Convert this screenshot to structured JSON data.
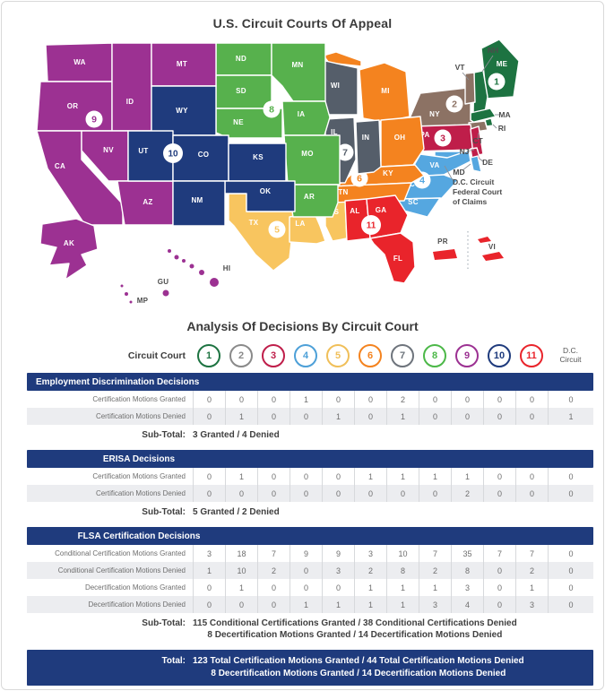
{
  "map": {
    "title": "U.S. Circuit Courts Of Appeal",
    "circuits": [
      {
        "number": "1",
        "color": "#1d7341",
        "states": [
          "ME",
          "NH",
          "MA",
          "RI"
        ]
      },
      {
        "number": "2",
        "color": "#8c7264",
        "states": [
          "NY",
          "VT",
          "CT"
        ]
      },
      {
        "number": "3",
        "color": "#bf1e4a",
        "states": [
          "PA",
          "NJ",
          "DE"
        ]
      },
      {
        "number": "4",
        "color": "#55a7e0",
        "states": [
          "MD",
          "DMV",
          "WV",
          "VA",
          "NC",
          "SC"
        ]
      },
      {
        "number": "5",
        "color": "#f8c55f",
        "states": [
          "TX",
          "LA",
          "MS"
        ]
      },
      {
        "number": "6",
        "color": "#f4831f",
        "states": [
          "MI",
          "OH",
          "KY",
          "TN"
        ]
      },
      {
        "number": "7",
        "color": "#555e6a",
        "states": [
          "WI",
          "IL",
          "IN"
        ]
      },
      {
        "number": "8",
        "color": "#57b14d",
        "states": [
          "ND",
          "SD",
          "NE",
          "MN",
          "IA",
          "MO",
          "AR"
        ]
      },
      {
        "number": "9",
        "color": "#9c3192",
        "states": [
          "WA",
          "OR",
          "ID",
          "MT",
          "CA",
          "NV",
          "AZ",
          "AK",
          "HI",
          "GU",
          "MP"
        ]
      },
      {
        "number": "10",
        "color": "#1f3b7d",
        "states": [
          "WY",
          "UT",
          "CO",
          "KS",
          "OK",
          "NM"
        ]
      },
      {
        "number": "11",
        "color": "#e9242b",
        "states": [
          "AL",
          "GA",
          "FL"
        ]
      }
    ],
    "territories": [
      {
        "label": "PR",
        "color": "#e9242b"
      },
      {
        "label": "VI",
        "color": "#e9242b"
      }
    ],
    "callouts": [
      "NH",
      "VT",
      "MA",
      "RI",
      "CT",
      "NJ",
      "DE",
      "MD"
    ],
    "dc_callout": [
      "D.C. Circuit",
      "Federal Court",
      "of Claims"
    ]
  },
  "table": {
    "title": "Analysis Of Decisions By Circuit Court",
    "header_label": "Circuit Court",
    "columns": [
      {
        "label": "1",
        "color": "#1d7341"
      },
      {
        "label": "2",
        "color": "#8a8a8a"
      },
      {
        "label": "3",
        "color": "#bf1e4a"
      },
      {
        "label": "4",
        "color": "#4da0d8"
      },
      {
        "label": "5",
        "color": "#f0bf59"
      },
      {
        "label": "6",
        "color": "#f4831f"
      },
      {
        "label": "7",
        "color": "#6e747c"
      },
      {
        "label": "8",
        "color": "#4cb848"
      },
      {
        "label": "9",
        "color": "#9c3192"
      },
      {
        "label": "10",
        "color": "#1f3b7d"
      },
      {
        "label": "11",
        "color": "#e9242b"
      }
    ],
    "dc_column": {
      "line1": "D.C.",
      "line2": "Circuit"
    },
    "sections": [
      {
        "title": "Employment Discrimination Decisions",
        "title_align": "left",
        "rows": [
          {
            "label": "Certification Motions Granted",
            "values": [
              "0",
              "0",
              "0",
              "1",
              "0",
              "0",
              "2",
              "0",
              "0",
              "0",
              "0",
              "0"
            ]
          },
          {
            "label": "Certification Motions Denied",
            "values": [
              "0",
              "1",
              "0",
              "0",
              "1",
              "0",
              "1",
              "0",
              "0",
              "0",
              "0",
              "1"
            ]
          }
        ],
        "subtotal_label": "Sub-Total:",
        "subtotal_lines": [
          "3 Granted / 4 Denied"
        ]
      },
      {
        "title": "ERISA Decisions",
        "title_align": "center",
        "rows": [
          {
            "label": "Certification Motions Granted",
            "values": [
              "0",
              "1",
              "0",
              "0",
              "0",
              "1",
              "1",
              "1",
              "1",
              "0",
              "0",
              "0"
            ]
          },
          {
            "label": "Certification Motions Denied",
            "values": [
              "0",
              "0",
              "0",
              "0",
              "0",
              "0",
              "0",
              "0",
              "2",
              "0",
              "0",
              "0"
            ]
          }
        ],
        "subtotal_label": "Sub-Total:",
        "subtotal_lines": [
          "5 Granted / 2 Denied"
        ]
      },
      {
        "title": "FLSA Certification Decisions",
        "title_align": "center",
        "rows": [
          {
            "label": "Conditional Certification Motions Granted",
            "values": [
              "3",
              "18",
              "7",
              "9",
              "9",
              "3",
              "10",
              "7",
              "35",
              "7",
              "7",
              "0"
            ]
          },
          {
            "label": "Conditional Certification Motions Denied",
            "values": [
              "1",
              "10",
              "2",
              "0",
              "3",
              "2",
              "8",
              "2",
              "8",
              "0",
              "2",
              "0"
            ]
          },
          {
            "label": "Decertification Motions Granted",
            "values": [
              "0",
              "1",
              "0",
              "0",
              "0",
              "1",
              "1",
              "1",
              "3",
              "0",
              "1",
              "0"
            ]
          },
          {
            "label": "Decertification Motions Denied",
            "values": [
              "0",
              "0",
              "0",
              "1",
              "1",
              "1",
              "1",
              "3",
              "4",
              "0",
              "3",
              "0"
            ]
          }
        ],
        "subtotal_label": "Sub-Total:",
        "subtotal_lines": [
          "115 Conditional Certifications Granted / 38 Conditional Certifications Denied",
          "8 Decertification Motions Granted / 14 Decertification Motions Denied"
        ]
      }
    ],
    "total": {
      "label": "Total:",
      "lines": [
        "123 Total Certification Motions Granted / 44 Total Certification Motions Denied",
        "8 Decertification Motions Granted / 14 Decertification Motions Denied"
      ]
    }
  }
}
